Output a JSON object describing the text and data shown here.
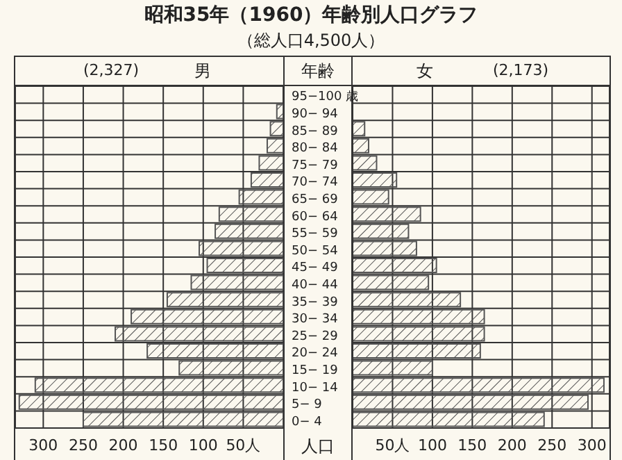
{
  "chart_data": [
    {
      "type": "bar",
      "orientation": "horizontal",
      "title": "昭和35年（1960）年齢別人口グラフ",
      "subtitle": "（総人口4,500人）",
      "annotations": [
        "(2,327)"
      ],
      "series": [
        {
          "name": "男",
          "color": "#555555",
          "values": [
            0,
            8,
            16,
            20,
            30,
            40,
            55,
            80,
            85,
            105,
            95,
            115,
            145,
            190,
            210,
            170,
            130,
            310,
            330,
            250
          ]
        }
      ],
      "xlim": [
        335,
        0
      ],
      "xticks": [
        300,
        250,
        200,
        150,
        100,
        {
          "value": 50,
          "label": "50人"
        }
      ],
      "grid": true,
      "legend": false,
      "tick_labels": "x"
    },
    {
      "type": "bar",
      "orientation": "horizontal",
      "annotations": [
        "(2,173)"
      ],
      "ylabel": "年齢",
      "xlabel": "人口",
      "categories": [
        "95−100 歳",
        "90− 94",
        "85− 89",
        "80− 84",
        "75− 79",
        "70− 74",
        "65− 69",
        "60− 64",
        "55− 59",
        "50− 54",
        "45− 49",
        "40− 44",
        "35− 39",
        "30− 34",
        "25− 29",
        "20− 24",
        "15− 19",
        "10− 14",
        "5− 9",
        "0− 4"
      ],
      "series": [
        {
          "name": "女",
          "color": "#555555",
          "values": [
            0,
            0,
            15,
            20,
            30,
            55,
            45,
            85,
            70,
            80,
            105,
            95,
            135,
            165,
            165,
            160,
            100,
            315,
            295,
            240
          ]
        }
      ],
      "xlim": [
        0,
        322
      ],
      "xticks": [
        {
          "value": 50,
          "label": "50人"
        },
        100,
        150,
        200,
        250,
        300
      ],
      "grid": true,
      "legend": false
    }
  ]
}
